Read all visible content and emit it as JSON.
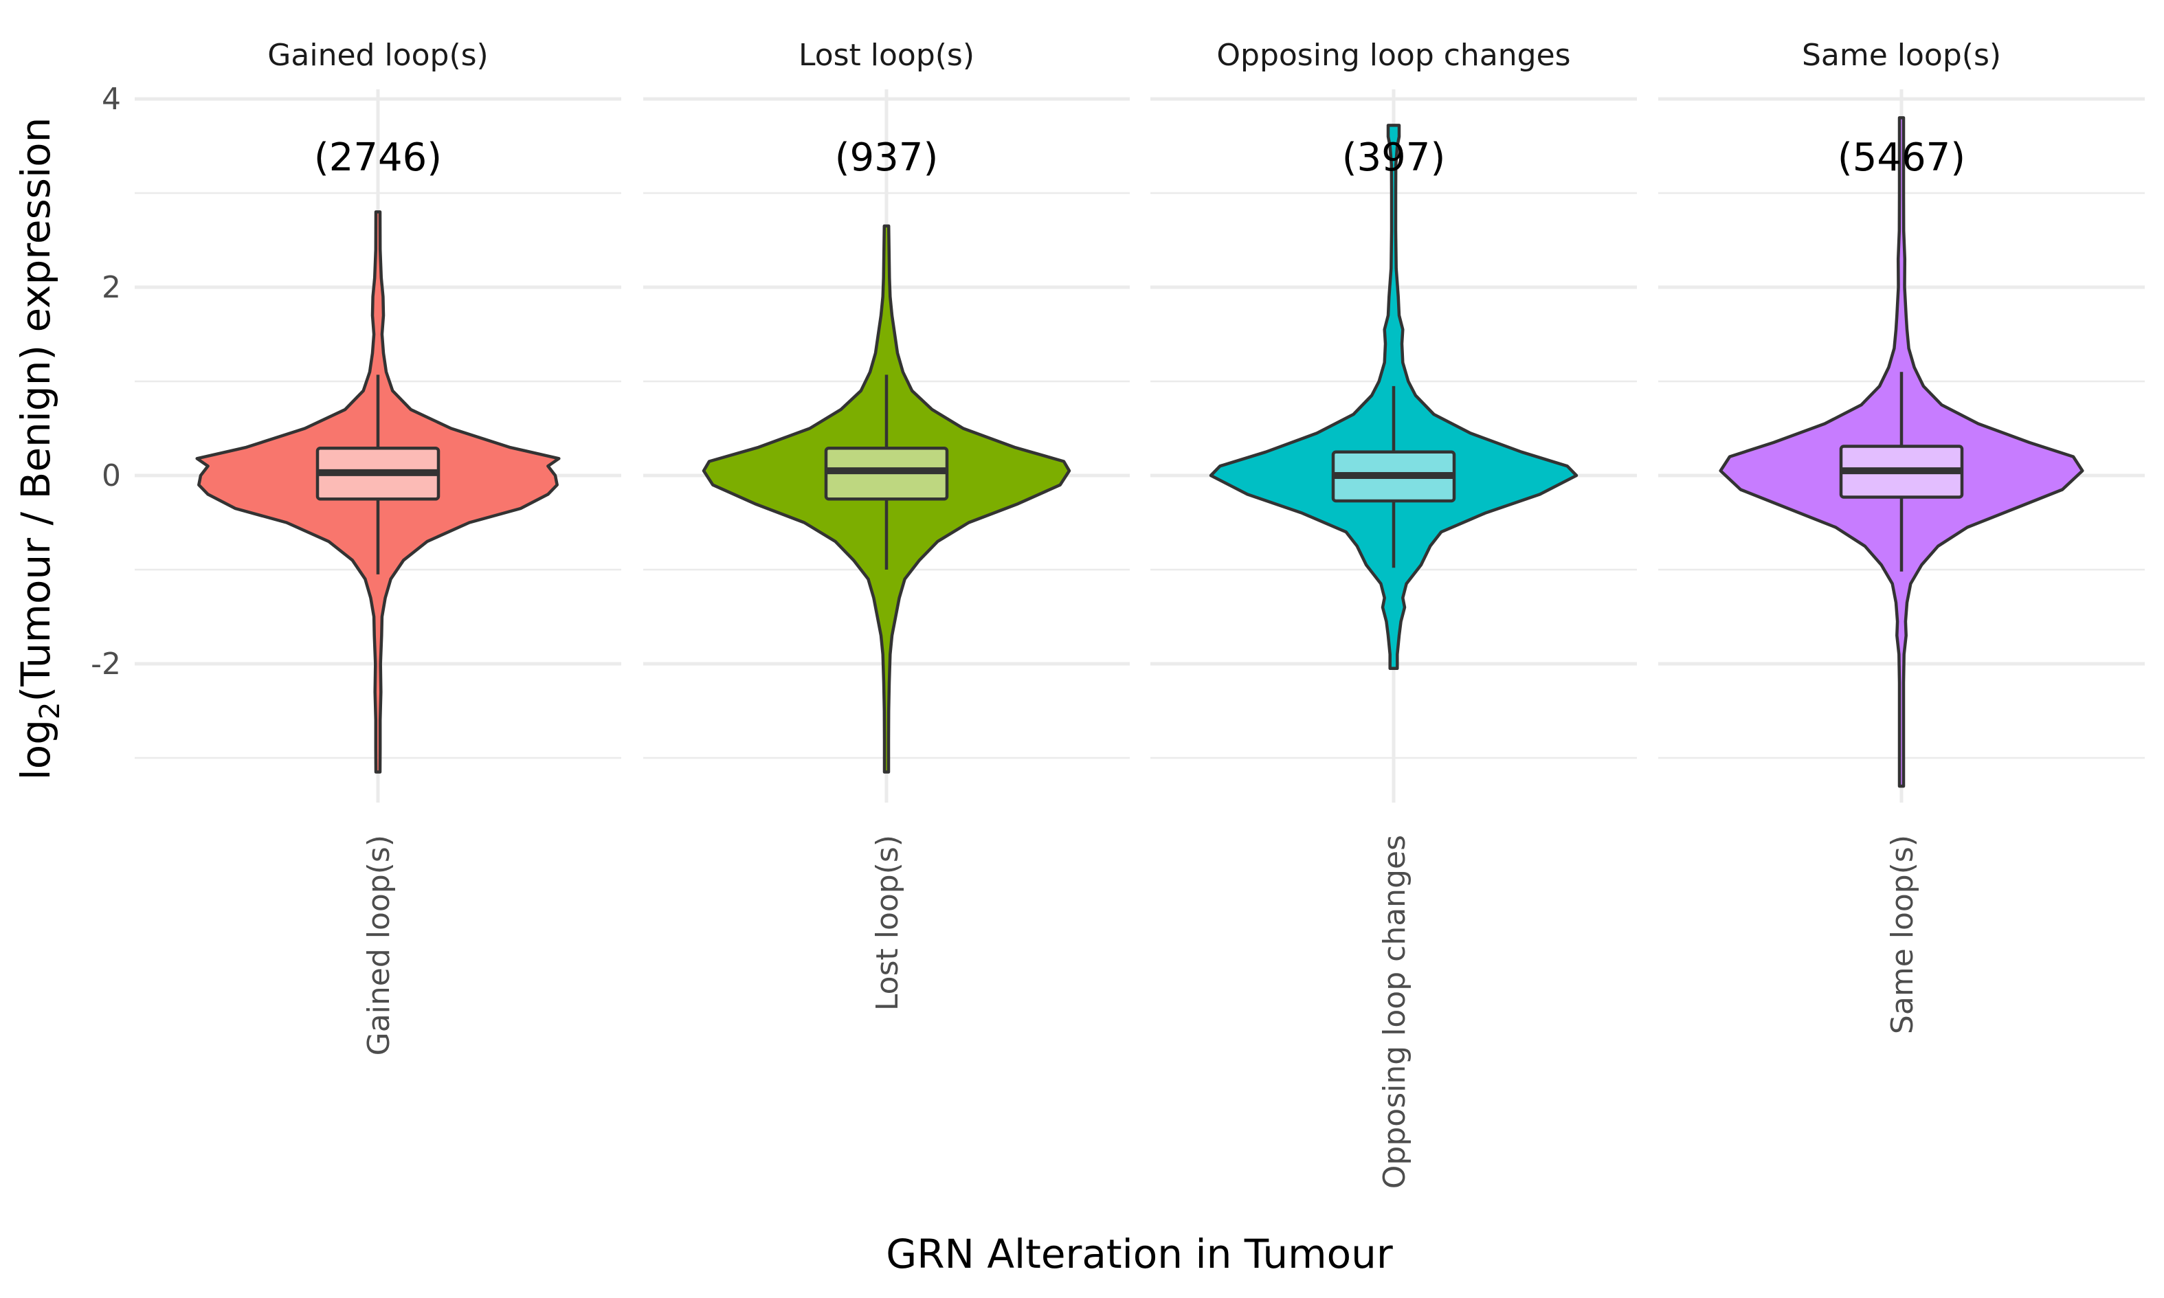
{
  "chart_data": {
    "type": "violin",
    "xlabel": "GRN Alteration in Tumour",
    "ylabel_prefix": "log",
    "ylabel_sub": "2",
    "ylabel_suffix": "(Tumour / Benign) expression",
    "ylim": [
      -3.4,
      4.1
    ],
    "yticks": [
      -2,
      0,
      2,
      4
    ],
    "yticklabels": [
      "-2",
      "0",
      "2",
      "4"
    ],
    "grid": true,
    "legend": "none",
    "categories": [
      "Gained loop(s)",
      "Lost loop(s)",
      "Opposing loop changes",
      "Same loop(s)"
    ],
    "panels": [
      {
        "strip": "Gained loop(s)",
        "tick_label": "Gained loop(s)",
        "count_label": "(2746)",
        "color": "#F8766D",
        "box": {
          "q1": -0.25,
          "median": 0.03,
          "q3": 0.29,
          "whisker_low": -1.05,
          "whisker_high": 1.07
        },
        "range": [
          -3.15,
          2.8
        ],
        "density": [
          [
            -3.15,
            0.01
          ],
          [
            -2.9,
            0.012
          ],
          [
            -2.6,
            0.012
          ],
          [
            -2.3,
            0.016
          ],
          [
            -2.0,
            0.014
          ],
          [
            -1.7,
            0.02
          ],
          [
            -1.5,
            0.022
          ],
          [
            -1.3,
            0.04
          ],
          [
            -1.1,
            0.07
          ],
          [
            -0.9,
            0.14
          ],
          [
            -0.7,
            0.27
          ],
          [
            -0.5,
            0.5
          ],
          [
            -0.35,
            0.78
          ],
          [
            -0.2,
            0.93
          ],
          [
            -0.1,
            0.98
          ],
          [
            0.0,
            0.97
          ],
          [
            0.1,
            0.93
          ],
          [
            0.18,
            0.99
          ],
          [
            0.3,
            0.72
          ],
          [
            0.5,
            0.4
          ],
          [
            0.7,
            0.18
          ],
          [
            0.9,
            0.08
          ],
          [
            1.1,
            0.045
          ],
          [
            1.3,
            0.03
          ],
          [
            1.5,
            0.022
          ],
          [
            1.7,
            0.03
          ],
          [
            1.9,
            0.028
          ],
          [
            2.1,
            0.018
          ],
          [
            2.4,
            0.012
          ],
          [
            2.8,
            0.008
          ]
        ]
      },
      {
        "strip": "Lost loop(s)",
        "tick_label": "Lost loop(s)",
        "count_label": "(937)",
        "color": "#7CAE00",
        "box": {
          "q1": -0.25,
          "median": 0.05,
          "q3": 0.29,
          "whisker_low": -1.0,
          "whisker_high": 1.07
        },
        "range": [
          -3.15,
          2.65
        ],
        "density": [
          [
            -3.15,
            0.008
          ],
          [
            -2.8,
            0.01
          ],
          [
            -2.5,
            0.012
          ],
          [
            -2.2,
            0.015
          ],
          [
            -1.9,
            0.02
          ],
          [
            -1.7,
            0.03
          ],
          [
            -1.5,
            0.05
          ],
          [
            -1.3,
            0.07
          ],
          [
            -1.1,
            0.1
          ],
          [
            -0.9,
            0.18
          ],
          [
            -0.7,
            0.28
          ],
          [
            -0.5,
            0.45
          ],
          [
            -0.3,
            0.72
          ],
          [
            -0.1,
            0.95
          ],
          [
            0.05,
            1.0
          ],
          [
            0.15,
            0.97
          ],
          [
            0.3,
            0.7
          ],
          [
            0.5,
            0.42
          ],
          [
            0.7,
            0.25
          ],
          [
            0.9,
            0.14
          ],
          [
            1.1,
            0.09
          ],
          [
            1.3,
            0.06
          ],
          [
            1.5,
            0.045
          ],
          [
            1.7,
            0.03
          ],
          [
            1.9,
            0.02
          ],
          [
            2.1,
            0.016
          ],
          [
            2.4,
            0.014
          ],
          [
            2.65,
            0.012
          ]
        ]
      },
      {
        "strip": "Opposing loop changes",
        "tick_label": "Opposing loop changes",
        "count_label": "(397)",
        "color": "#00BFC4",
        "box": {
          "q1": -0.27,
          "median": 0.0,
          "q3": 0.25,
          "whisker_low": -0.98,
          "whisker_high": 0.95
        },
        "range": [
          -2.05,
          3.72
        ],
        "density": [
          [
            -2.05,
            0.02
          ],
          [
            -1.9,
            0.02
          ],
          [
            -1.7,
            0.03
          ],
          [
            -1.55,
            0.04
          ],
          [
            -1.4,
            0.06
          ],
          [
            -1.3,
            0.05
          ],
          [
            -1.15,
            0.07
          ],
          [
            -0.95,
            0.15
          ],
          [
            -0.75,
            0.2
          ],
          [
            -0.6,
            0.26
          ],
          [
            -0.4,
            0.5
          ],
          [
            -0.2,
            0.8
          ],
          [
            0.0,
            1.0
          ],
          [
            0.1,
            0.95
          ],
          [
            0.25,
            0.7
          ],
          [
            0.45,
            0.42
          ],
          [
            0.65,
            0.22
          ],
          [
            0.85,
            0.12
          ],
          [
            1.0,
            0.08
          ],
          [
            1.2,
            0.05
          ],
          [
            1.4,
            0.045
          ],
          [
            1.55,
            0.05
          ],
          [
            1.7,
            0.03
          ],
          [
            1.9,
            0.025
          ],
          [
            2.2,
            0.014
          ],
          [
            2.6,
            0.01
          ],
          [
            3.0,
            0.01
          ],
          [
            3.3,
            0.012
          ],
          [
            3.5,
            0.02
          ],
          [
            3.6,
            0.03
          ],
          [
            3.72,
            0.03
          ]
        ]
      },
      {
        "strip": "Same loop(s)",
        "tick_label": "Same loop(s)",
        "count_label": "(5467)",
        "color": "#C77CFF",
        "box": {
          "q1": -0.23,
          "median": 0.05,
          "q3": 0.31,
          "whisker_low": -1.02,
          "whisker_high": 1.1
        },
        "range": [
          -3.3,
          3.8
        ],
        "density": [
          [
            -3.3,
            0.006
          ],
          [
            -3.0,
            0.007
          ],
          [
            -2.6,
            0.008
          ],
          [
            -2.2,
            0.01
          ],
          [
            -1.9,
            0.014
          ],
          [
            -1.7,
            0.025
          ],
          [
            -1.55,
            0.022
          ],
          [
            -1.35,
            0.03
          ],
          [
            -1.15,
            0.05
          ],
          [
            -0.95,
            0.11
          ],
          [
            -0.75,
            0.2
          ],
          [
            -0.55,
            0.36
          ],
          [
            -0.35,
            0.62
          ],
          [
            -0.15,
            0.88
          ],
          [
            0.05,
            0.99
          ],
          [
            0.2,
            0.94
          ],
          [
            0.35,
            0.7
          ],
          [
            0.55,
            0.42
          ],
          [
            0.75,
            0.22
          ],
          [
            0.95,
            0.12
          ],
          [
            1.15,
            0.07
          ],
          [
            1.35,
            0.04
          ],
          [
            1.55,
            0.03
          ],
          [
            1.7,
            0.025
          ],
          [
            2.0,
            0.017
          ],
          [
            2.3,
            0.018
          ],
          [
            2.6,
            0.012
          ],
          [
            3.0,
            0.01
          ],
          [
            3.4,
            0.008
          ],
          [
            3.8,
            0.006
          ]
        ]
      }
    ]
  }
}
